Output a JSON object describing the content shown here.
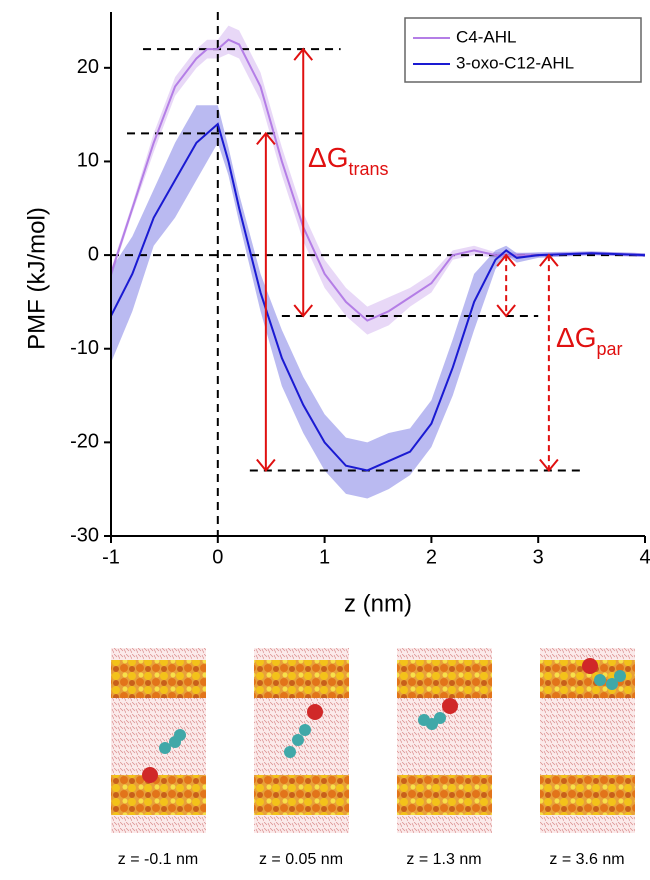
{
  "chart_data": {
    "type": "line",
    "x_label": "z (nm)",
    "y_label": "PMF (kJ/mol)",
    "x": [
      -1,
      -0.8,
      -0.6,
      -0.4,
      -0.2,
      -0.1,
      0,
      0.1,
      0.2,
      0.4,
      0.6,
      0.8,
      1,
      1.2,
      1.4,
      1.6,
      1.8,
      2,
      2.2,
      2.4,
      2.6,
      2.7,
      2.8,
      3,
      3.5,
      4
    ],
    "series": [
      {
        "name": "C4-AHL",
        "color": "#b47ee6",
        "values": [
          -2,
          5,
          12,
          18,
          21,
          22,
          22,
          23,
          22.5,
          18,
          10,
          3,
          -2,
          -5,
          -7,
          -6,
          -4.5,
          -3,
          0,
          0.5,
          0,
          0,
          0,
          0,
          0.2,
          0
        ],
        "error": [
          0.5,
          0.5,
          1,
          1,
          1,
          1,
          1,
          1.5,
          1.5,
          1.5,
          1.5,
          1.5,
          1.5,
          1.5,
          1.5,
          1.5,
          1,
          1,
          0.5,
          0.5,
          0.3,
          0.3,
          0.3,
          0.2,
          0.2,
          0.2
        ]
      },
      {
        "name": "3-oxo-C12-AHL",
        "color": "#1a1ad2",
        "values": [
          -6.5,
          -2,
          4,
          8,
          12,
          13,
          14,
          10,
          5,
          -4,
          -11,
          -16,
          -20,
          -22.5,
          -23,
          -22,
          -21,
          -18,
          -12,
          -5,
          -0.5,
          0.5,
          -0.3,
          0,
          0.2,
          0
        ],
        "error": [
          5,
          4,
          3,
          4,
          4,
          3,
          2,
          1.5,
          1.5,
          2,
          3,
          3,
          3,
          3,
          3,
          3,
          2.5,
          2.5,
          3,
          3,
          1,
          0.5,
          0.5,
          0.3,
          0.2,
          0.2
        ]
      }
    ],
    "xlim": [
      -1,
      4
    ],
    "xticks": [
      -1,
      0,
      1,
      2,
      3,
      4
    ],
    "ylim": [
      -30,
      25
    ],
    "yticks": [
      -30,
      -20,
      -10,
      0,
      10,
      20
    ],
    "legend": "top-right",
    "reference_lines": [
      {
        "y": 22,
        "x_from": -0.7,
        "x_to": 1.15
      },
      {
        "y": 13,
        "x_from": -0.85,
        "x_to": 0.8
      },
      {
        "y": 0,
        "x_from": -1,
        "x_to": 4
      },
      {
        "y": -6.5,
        "x_from": 0.6,
        "x_to": 3
      },
      {
        "y": -23,
        "x_from": 0.3,
        "x_to": 3.4
      }
    ],
    "arrows": [
      {
        "x": 0.8,
        "from": 22,
        "to": -6.5,
        "style": "solid"
      },
      {
        "x": 0.45,
        "from": 13,
        "to": -23,
        "style": "solid"
      },
      {
        "x": 2.7,
        "from": 0,
        "to": -6.5,
        "style": "dashed"
      },
      {
        "x": 3.1,
        "from": 0,
        "to": -23,
        "style": "dashed"
      }
    ],
    "annotations": [
      {
        "text": "ΔG",
        "sub": "trans"
      },
      {
        "text": "ΔG",
        "sub": "par"
      }
    ]
  },
  "snapshot_captions": [
    "z = -0.1 nm",
    "z = 0.05 nm",
    "z = 1.3 nm",
    "z = 3.6 nm"
  ]
}
